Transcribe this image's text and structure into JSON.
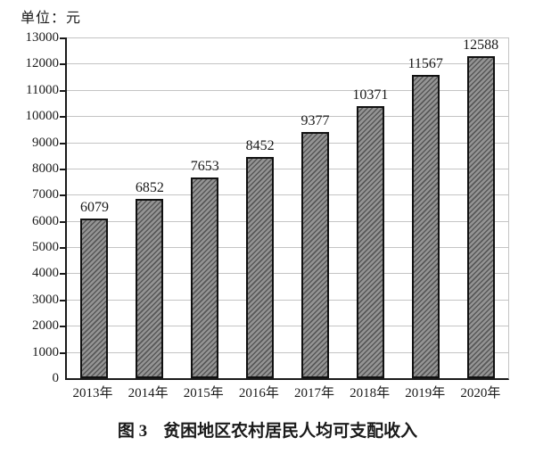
{
  "unit_label": "单位：元",
  "caption": {
    "figure_label": "图 3",
    "title": "贫困地区农村居民人均可支配收入"
  },
  "chart_data": {
    "type": "bar",
    "title": "图 3 贫困地区农村居民人均可支配收入",
    "unit_label": "单位：元",
    "categories": [
      "2013年",
      "2014年",
      "2015年",
      "2016年",
      "2017年",
      "2018年",
      "2019年",
      "2020年"
    ],
    "values": [
      6079,
      6852,
      7653,
      8452,
      9377,
      10371,
      11567,
      12588
    ],
    "xlabel": "",
    "ylabel": "元",
    "ylim": [
      0,
      13000
    ],
    "ytick_step": 1000,
    "grid": true,
    "legend": "none",
    "colors": {
      "bar_fill_base": "#949494",
      "bar_hatch_line": "#575757",
      "bar_hatch_style": "diagonal-forward-slash",
      "bar_border": "#111111",
      "gridline": "#c4c4c4",
      "axis": "#1a1a1a",
      "text": "#1a1a1a",
      "background": "#ffffff"
    }
  }
}
